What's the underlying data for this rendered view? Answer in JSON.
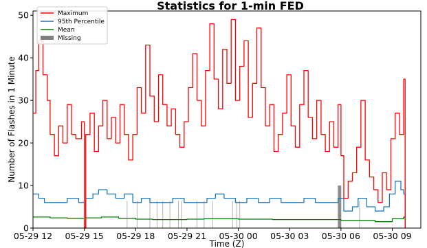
{
  "chart_data": {
    "type": "line",
    "title": "Statistics for 1-min FED",
    "xlabel": "Time (Z)",
    "ylabel": "Number of Flashes in 1 Minute",
    "xlim": [
      "2019-05-29 12:00",
      "2019-05-30 10:40"
    ],
    "ylim": [
      0,
      51
    ],
    "y_ticks": [
      0,
      10,
      20,
      30,
      40,
      50
    ],
    "x_ticks": [
      {
        "time": "2019-05-29 12:00",
        "label": "05-29 12"
      },
      {
        "time": "2019-05-29 15:00",
        "label": "05-29 15"
      },
      {
        "time": "2019-05-29 18:00",
        "label": "05-29 18"
      },
      {
        "time": "2019-05-29 21:00",
        "label": "05-29 21"
      },
      {
        "time": "2019-05-30 00:00",
        "label": "05-30 00"
      },
      {
        "time": "2019-05-30 03:00",
        "label": "05-30 03"
      },
      {
        "time": "2019-05-30 06:00",
        "label": "05-30 06"
      },
      {
        "time": "2019-05-30 09:00",
        "label": "05-30 09"
      }
    ],
    "grid": false,
    "legend_position": "top-left",
    "series": [
      {
        "name": "Maximum",
        "color": "#ff0000",
        "points": [
          [
            "2019-05-29 12:00",
            27
          ],
          [
            "2019-05-29 12:10",
            37
          ],
          [
            "2019-05-29 12:20",
            44
          ],
          [
            "2019-05-29 12:35",
            36
          ],
          [
            "2019-05-29 12:50",
            30
          ],
          [
            "2019-05-29 13:00",
            22
          ],
          [
            "2019-05-29 13:15",
            17
          ],
          [
            "2019-05-29 13:30",
            24
          ],
          [
            "2019-05-29 13:45",
            20
          ],
          [
            "2019-05-29 14:00",
            29
          ],
          [
            "2019-05-29 14:15",
            22
          ],
          [
            "2019-05-29 14:30",
            21
          ],
          [
            "2019-05-29 14:50",
            25
          ],
          [
            "2019-05-29 15:00",
            0
          ],
          [
            "2019-05-29 15:05",
            22
          ],
          [
            "2019-05-29 15:20",
            27
          ],
          [
            "2019-05-29 15:35",
            18
          ],
          [
            "2019-05-29 15:50",
            24
          ],
          [
            "2019-05-29 16:05",
            30
          ],
          [
            "2019-05-29 16:20",
            21
          ],
          [
            "2019-05-29 16:35",
            26
          ],
          [
            "2019-05-29 16:50",
            20
          ],
          [
            "2019-05-29 17:05",
            29
          ],
          [
            "2019-05-29 17:20",
            22
          ],
          [
            "2019-05-29 17:35",
            16
          ],
          [
            "2019-05-29 17:50",
            22
          ],
          [
            "2019-05-29 18:05",
            33
          ],
          [
            "2019-05-29 18:20",
            27
          ],
          [
            "2019-05-29 18:35",
            43
          ],
          [
            "2019-05-29 18:50",
            31
          ],
          [
            "2019-05-29 19:05",
            25
          ],
          [
            "2019-05-29 19:20",
            36
          ],
          [
            "2019-05-29 19:35",
            29
          ],
          [
            "2019-05-29 19:50",
            24
          ],
          [
            "2019-05-29 20:05",
            28
          ],
          [
            "2019-05-29 20:20",
            22
          ],
          [
            "2019-05-29 20:35",
            19
          ],
          [
            "2019-05-29 20:50",
            25
          ],
          [
            "2019-05-29 21:05",
            33
          ],
          [
            "2019-05-29 21:20",
            41
          ],
          [
            "2019-05-29 21:35",
            30
          ],
          [
            "2019-05-29 21:50",
            24
          ],
          [
            "2019-05-29 22:05",
            37
          ],
          [
            "2019-05-29 22:20",
            48
          ],
          [
            "2019-05-29 22:35",
            35
          ],
          [
            "2019-05-29 22:50",
            28
          ],
          [
            "2019-05-29 23:05",
            42
          ],
          [
            "2019-05-29 23:20",
            34
          ],
          [
            "2019-05-29 23:35",
            49
          ],
          [
            "2019-05-29 23:50",
            30
          ],
          [
            "2019-05-30 00:05",
            38
          ],
          [
            "2019-05-30 00:20",
            44
          ],
          [
            "2019-05-30 00:35",
            26
          ],
          [
            "2019-05-30 00:50",
            34
          ],
          [
            "2019-05-30 01:05",
            47
          ],
          [
            "2019-05-30 01:20",
            33
          ],
          [
            "2019-05-30 01:35",
            24
          ],
          [
            "2019-05-30 01:50",
            29
          ],
          [
            "2019-05-30 02:05",
            18
          ],
          [
            "2019-05-30 02:20",
            22
          ],
          [
            "2019-05-30 02:35",
            27
          ],
          [
            "2019-05-30 02:50",
            36
          ],
          [
            "2019-05-30 03:05",
            24
          ],
          [
            "2019-05-30 03:20",
            19
          ],
          [
            "2019-05-30 03:35",
            29
          ],
          [
            "2019-05-30 03:50",
            37
          ],
          [
            "2019-05-30 04:05",
            26
          ],
          [
            "2019-05-30 04:20",
            21
          ],
          [
            "2019-05-30 04:35",
            30
          ],
          [
            "2019-05-30 04:50",
            22
          ],
          [
            "2019-05-30 05:05",
            18
          ],
          [
            "2019-05-30 05:20",
            25
          ],
          [
            "2019-05-30 05:35",
            19
          ],
          [
            "2019-05-30 05:50",
            29
          ],
          [
            "2019-05-30 06:00",
            17
          ],
          [
            "2019-05-30 06:10",
            7
          ],
          [
            "2019-05-30 06:25",
            11
          ],
          [
            "2019-05-30 06:40",
            13
          ],
          [
            "2019-05-30 06:55",
            19
          ],
          [
            "2019-05-30 07:10",
            30
          ],
          [
            "2019-05-30 07:25",
            16
          ],
          [
            "2019-05-30 07:40",
            12
          ],
          [
            "2019-05-30 07:55",
            9
          ],
          [
            "2019-05-30 08:10",
            6
          ],
          [
            "2019-05-30 08:25",
            13
          ],
          [
            "2019-05-30 08:40",
            9
          ],
          [
            "2019-05-30 08:55",
            21
          ],
          [
            "2019-05-30 09:10",
            27
          ],
          [
            "2019-05-30 09:25",
            22
          ],
          [
            "2019-05-30 09:40",
            35
          ],
          [
            "2019-05-30 09:45",
            0
          ]
        ]
      },
      {
        "name": "95th Percentile",
        "color": "#1f77b4",
        "points": [
          [
            "2019-05-29 12:00",
            8
          ],
          [
            "2019-05-29 12:20",
            7
          ],
          [
            "2019-05-29 12:40",
            6
          ],
          [
            "2019-05-29 13:20",
            6
          ],
          [
            "2019-05-29 14:00",
            7
          ],
          [
            "2019-05-29 14:40",
            6
          ],
          [
            "2019-05-29 15:00",
            0
          ],
          [
            "2019-05-29 15:05",
            7
          ],
          [
            "2019-05-29 15:30",
            8
          ],
          [
            "2019-05-29 15:50",
            9
          ],
          [
            "2019-05-29 16:20",
            8
          ],
          [
            "2019-05-29 16:50",
            7
          ],
          [
            "2019-05-29 17:20",
            8
          ],
          [
            "2019-05-29 17:50",
            6
          ],
          [
            "2019-05-29 18:20",
            7
          ],
          [
            "2019-05-29 18:50",
            6
          ],
          [
            "2019-05-29 19:30",
            6
          ],
          [
            "2019-05-29 20:10",
            7
          ],
          [
            "2019-05-29 20:50",
            6
          ],
          [
            "2019-05-29 21:30",
            6
          ],
          [
            "2019-05-29 22:10",
            7
          ],
          [
            "2019-05-29 22:40",
            8
          ],
          [
            "2019-05-29 23:10",
            7
          ],
          [
            "2019-05-29 23:50",
            6
          ],
          [
            "2019-05-30 00:30",
            7
          ],
          [
            "2019-05-30 01:10",
            6
          ],
          [
            "2019-05-30 01:50",
            7
          ],
          [
            "2019-05-30 02:30",
            6
          ],
          [
            "2019-05-30 03:10",
            6
          ],
          [
            "2019-05-30 03:50",
            7
          ],
          [
            "2019-05-30 04:30",
            6
          ],
          [
            "2019-05-30 05:10",
            6
          ],
          [
            "2019-05-30 05:50",
            7
          ],
          [
            "2019-05-30 06:10",
            4
          ],
          [
            "2019-05-30 06:40",
            5
          ],
          [
            "2019-05-30 07:00",
            7
          ],
          [
            "2019-05-30 07:30",
            5
          ],
          [
            "2019-05-30 08:00",
            4
          ],
          [
            "2019-05-30 08:30",
            5
          ],
          [
            "2019-05-30 08:50",
            8
          ],
          [
            "2019-05-30 09:10",
            11
          ],
          [
            "2019-05-30 09:30",
            9
          ],
          [
            "2019-05-30 09:40",
            8
          ],
          [
            "2019-05-30 09:45",
            0
          ]
        ]
      },
      {
        "name": "Mean",
        "color": "#008000",
        "points": [
          [
            "2019-05-29 12:00",
            2.6
          ],
          [
            "2019-05-29 13:00",
            2.4
          ],
          [
            "2019-05-29 14:00",
            2.3
          ],
          [
            "2019-05-29 15:00",
            0
          ],
          [
            "2019-05-29 15:05",
            2.4
          ],
          [
            "2019-05-29 16:00",
            2.6
          ],
          [
            "2019-05-29 17:00",
            2.3
          ],
          [
            "2019-05-29 18:00",
            2.1
          ],
          [
            "2019-05-29 19:00",
            2.0
          ],
          [
            "2019-05-29 20:00",
            2.0
          ],
          [
            "2019-05-29 21:00",
            2.1
          ],
          [
            "2019-05-29 22:00",
            2.2
          ],
          [
            "2019-05-29 23:00",
            2.2
          ],
          [
            "2019-05-30 00:00",
            2.1
          ],
          [
            "2019-05-30 01:00",
            2.1
          ],
          [
            "2019-05-30 02:00",
            2.0
          ],
          [
            "2019-05-30 03:00",
            2.0
          ],
          [
            "2019-05-30 04:00",
            2.0
          ],
          [
            "2019-05-30 05:00",
            2.0
          ],
          [
            "2019-05-30 06:00",
            1.8
          ],
          [
            "2019-05-30 07:00",
            1.8
          ],
          [
            "2019-05-30 08:00",
            1.5
          ],
          [
            "2019-05-30 09:00",
            2.2
          ],
          [
            "2019-05-30 09:40",
            2.6
          ],
          [
            "2019-05-30 09:45",
            0
          ]
        ]
      }
    ],
    "missing": {
      "name": "Missing",
      "color": "#808080",
      "periods": [
        {
          "time": "2019-05-29 15:05",
          "thick": false
        },
        {
          "time": "2019-05-29 17:30",
          "thick": false
        },
        {
          "time": "2019-05-29 18:05",
          "thick": false
        },
        {
          "time": "2019-05-29 18:50",
          "thick": false
        },
        {
          "time": "2019-05-29 19:15",
          "thick": false
        },
        {
          "time": "2019-05-29 19:35",
          "thick": false
        },
        {
          "time": "2019-05-29 20:00",
          "thick": false
        },
        {
          "time": "2019-05-29 20:30",
          "thick": false
        },
        {
          "time": "2019-05-29 20:40",
          "thick": false
        },
        {
          "time": "2019-05-29 21:35",
          "thick": false
        },
        {
          "time": "2019-05-29 22:00",
          "thick": false
        },
        {
          "time": "2019-05-29 22:30",
          "thick": false
        },
        {
          "time": "2019-05-29 23:40",
          "thick": false
        },
        {
          "time": "2019-05-29 23:55",
          "thick": false
        },
        {
          "time": "2019-05-30 00:05",
          "thick": false
        },
        {
          "time": "2019-05-30 05:55",
          "thick": true
        },
        {
          "time": "2019-05-30 07:05",
          "thick": false
        },
        {
          "time": "2019-05-30 09:45",
          "thick": false
        }
      ]
    }
  }
}
